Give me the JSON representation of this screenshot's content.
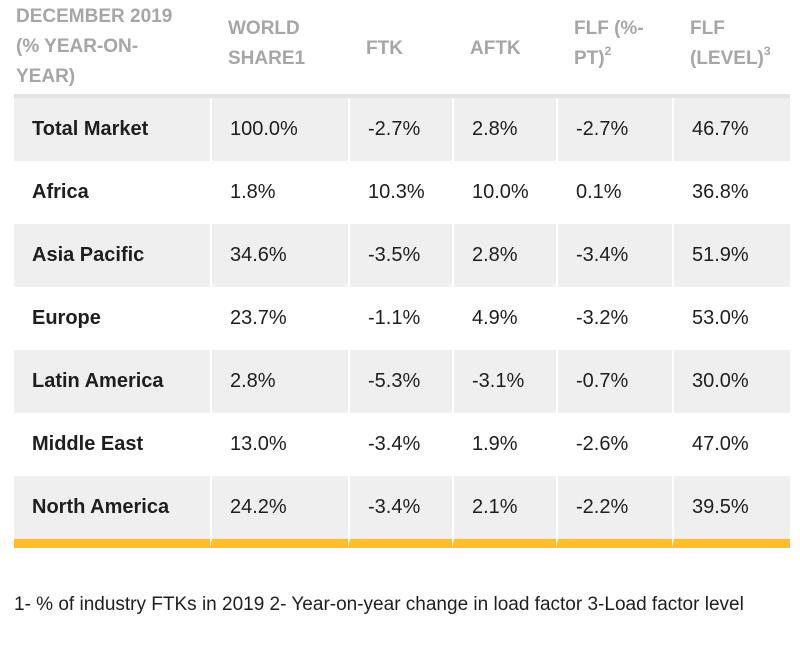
{
  "table": {
    "headers": [
      [
        "DECEMBER 2019",
        "(% YEAR-ON-",
        "YEAR)"
      ],
      [
        "WORLD",
        "SHARE1"
      ],
      [
        "FTK"
      ],
      [
        "AFTK"
      ],
      [
        "FLF (%-",
        "PT)"
      ],
      [
        "FLF",
        "(LEVEL)"
      ]
    ],
    "header_sups": {
      "flf_pt": "2",
      "flf_level": "3"
    },
    "rows": [
      [
        "Total Market",
        "100.0%",
        "-2.7%",
        "2.8%",
        "-2.7%",
        "46.7%"
      ],
      [
        "Africa",
        "1.8%",
        "10.3%",
        "10.0%",
        "0.1%",
        "36.8%"
      ],
      [
        "Asia Pacific",
        "34.6%",
        "-3.5%",
        "2.8%",
        "-3.4%",
        "51.9%"
      ],
      [
        "Europe",
        "23.7%",
        "-1.1%",
        "4.9%",
        "-3.2%",
        "53.0%"
      ],
      [
        "Latin America",
        "2.8%",
        "-5.3%",
        "-3.1%",
        "-0.7%",
        "30.0%"
      ],
      [
        "Middle East",
        "13.0%",
        "-3.4%",
        "1.9%",
        "-2.6%",
        "47.0%"
      ],
      [
        "North America",
        "24.2%",
        "-3.4%",
        "2.1%",
        "-2.2%",
        "39.5%"
      ]
    ]
  },
  "footnote": "1- % of industry FTKs in 2019 2- Year-on-year change in load factor 3-Load factor level",
  "colors": {
    "header_text": "#a6a6a6",
    "row_shade": "#efefef",
    "accent_bar": "#ffbd2e",
    "body_text": "#1e1e1e"
  }
}
